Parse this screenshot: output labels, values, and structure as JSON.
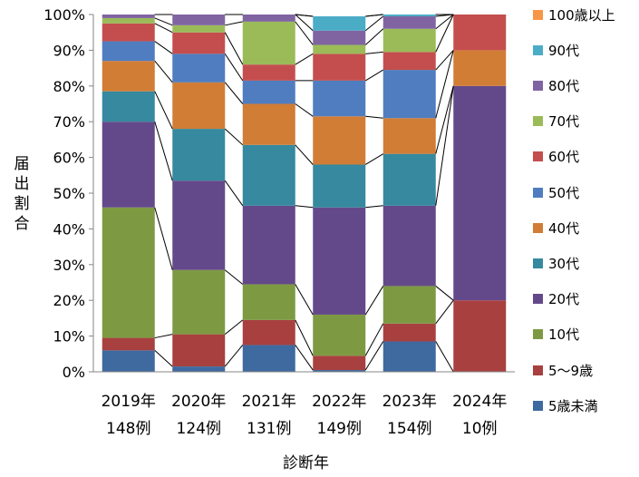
{
  "chart_data": {
    "type": "bar",
    "stacked": true,
    "percent": true,
    "categories": [
      "2019年",
      "2020年",
      "2021年",
      "2022年",
      "2023年",
      "2024年"
    ],
    "category_counts": [
      "148例",
      "124例",
      "131例",
      "149例",
      "154例",
      "10例"
    ],
    "xlabel": "診断年",
    "ylabel": "届出割合",
    "ylim": [
      0,
      100
    ],
    "yticks": [
      "0%",
      "10%",
      "20%",
      "30%",
      "40%",
      "50%",
      "60%",
      "70%",
      "80%",
      "90%",
      "100%"
    ],
    "grid": false,
    "legend_position": "right",
    "connector_lines": true,
    "series": [
      {
        "name": "5歳未満",
        "color": "#3f6aa0",
        "values": [
          6,
          1.5,
          7.5,
          0.5,
          8.5,
          0
        ]
      },
      {
        "name": "5～9歳",
        "color": "#a84040",
        "values": [
          3.5,
          9,
          7,
          4,
          5,
          20
        ]
      },
      {
        "name": "10代",
        "color": "#7d9a43",
        "values": [
          36.5,
          18,
          10,
          11.5,
          10.5,
          0
        ]
      },
      {
        "name": "20代",
        "color": "#64498a",
        "values": [
          24,
          25,
          22,
          30,
          22.5,
          60
        ]
      },
      {
        "name": "30代",
        "color": "#36899e",
        "values": [
          8.5,
          14.5,
          17,
          12,
          14.5,
          0
        ]
      },
      {
        "name": "40代",
        "color": "#d17d36",
        "values": [
          8.5,
          13,
          11.5,
          13.5,
          10,
          10
        ]
      },
      {
        "name": "50代",
        "color": "#4f7dc0",
        "values": [
          5.5,
          8,
          6.5,
          10,
          13.5,
          0
        ]
      },
      {
        "name": "60代",
        "color": "#c44e4e",
        "values": [
          5,
          6,
          4.5,
          7.5,
          5,
          10
        ]
      },
      {
        "name": "70代",
        "color": "#9bbb59",
        "values": [
          1.5,
          2,
          12,
          2.5,
          6.5,
          0
        ]
      },
      {
        "name": "80代",
        "color": "#8064a2",
        "values": [
          1,
          3,
          2,
          4,
          3.5,
          0
        ]
      },
      {
        "name": "90代",
        "color": "#4bacc6",
        "values": [
          0,
          0,
          0,
          4,
          0.5,
          0
        ]
      },
      {
        "name": "100歳以上",
        "color": "#f79646",
        "values": [
          0,
          0,
          0,
          0,
          0,
          0
        ]
      }
    ]
  }
}
